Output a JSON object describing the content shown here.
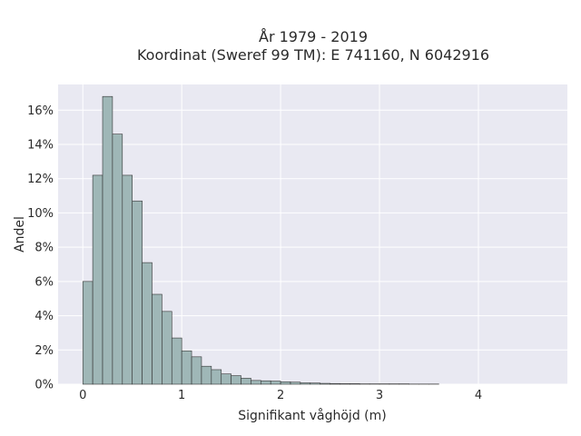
{
  "chart_data": {
    "type": "bar",
    "title": "År 1979 - 2019",
    "subtitle": "Koordinat (Sweref 99 TM): E 741160, N 6042916",
    "xlabel": "Signifikant våghöjd (m)",
    "ylabel": "Andel",
    "xlim": [
      -0.25,
      4.9
    ],
    "ylim": [
      0,
      17.5
    ],
    "x_ticks": [
      {
        "value": 0,
        "label": "0"
      },
      {
        "value": 1,
        "label": "1"
      },
      {
        "value": 2,
        "label": "2"
      },
      {
        "value": 3,
        "label": "3"
      },
      {
        "value": 4,
        "label": "4"
      }
    ],
    "y_ticks": [
      {
        "value": 0,
        "label": "0%"
      },
      {
        "value": 2,
        "label": "2%"
      },
      {
        "value": 4,
        "label": "4%"
      },
      {
        "value": 6,
        "label": "6%"
      },
      {
        "value": 8,
        "label": "8%"
      },
      {
        "value": 10,
        "label": "10%"
      },
      {
        "value": 12,
        "label": "12%"
      },
      {
        "value": 14,
        "label": "14%"
      },
      {
        "value": 16,
        "label": "16%"
      }
    ],
    "bin_width": 0.1,
    "bin_starts": [
      0.0,
      0.1,
      0.2,
      0.3,
      0.4,
      0.5,
      0.6,
      0.7,
      0.8,
      0.9,
      1.0,
      1.1,
      1.2,
      1.3,
      1.4,
      1.5,
      1.6,
      1.7,
      1.8,
      1.9,
      2.0,
      2.1,
      2.2,
      2.3,
      2.4,
      2.5,
      2.6,
      2.7,
      2.8,
      2.9,
      3.0,
      3.1,
      3.2,
      3.3,
      3.4,
      3.5
    ],
    "values": [
      6.0,
      12.2,
      16.8,
      14.6,
      12.2,
      10.7,
      7.1,
      5.25,
      4.25,
      2.7,
      1.95,
      1.6,
      1.05,
      0.85,
      0.6,
      0.5,
      0.35,
      0.22,
      0.2,
      0.18,
      0.14,
      0.12,
      0.08,
      0.07,
      0.05,
      0.04,
      0.03,
      0.03,
      0.02,
      0.02,
      0.02,
      0.02,
      0.02,
      0.01,
      0.01,
      0.01
    ],
    "grid": true,
    "colors": {
      "bar_fill": "#9fb7b7",
      "bar_stroke": "#333333",
      "plot_background": "#e9e9f2",
      "grid": "#ffffff"
    }
  }
}
